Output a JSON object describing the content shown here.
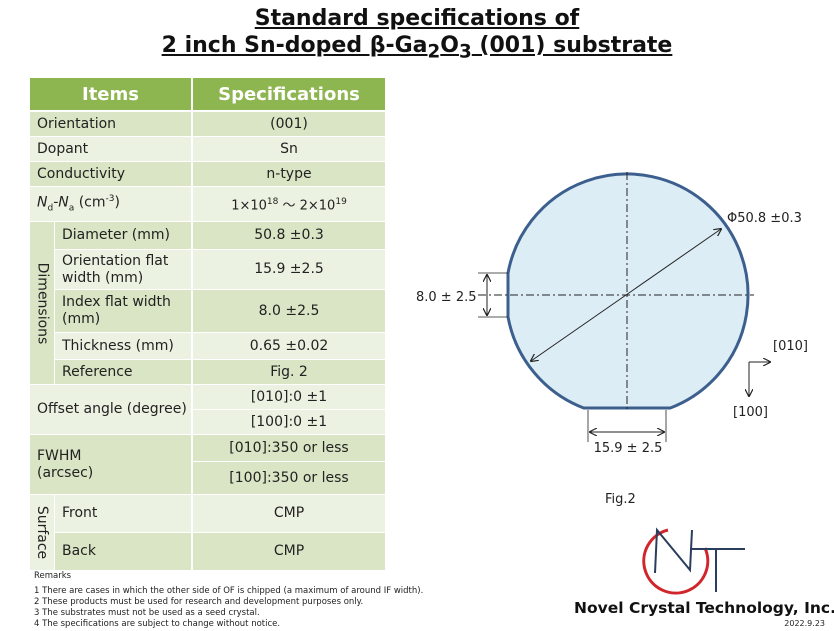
{
  "title": {
    "line1": "Standard specifications of",
    "line2": [
      "2 inch Sn-doped β-Ga",
      "2",
      "O",
      "3",
      " (001) substrate"
    ]
  },
  "table": {
    "header": [
      "Items",
      "Specifications"
    ],
    "orientation": [
      "Orientation",
      "(001)"
    ],
    "dopant": [
      "Dopant",
      "Sn"
    ],
    "conductivity": [
      "Conductivity",
      "n-type"
    ],
    "carrier": {
      "item": [
        "N",
        "d",
        "-N",
        "a",
        " (cm",
        "-3",
        ")"
      ],
      "spec": [
        "1×10",
        "18",
        " ～ 2×10",
        "19"
      ]
    },
    "dimensions": {
      "label": "Dimensions",
      "rows": [
        [
          "Diameter (mm)",
          "50.8 ±0.3"
        ],
        [
          "Orientation flat width (mm)",
          "15.9 ±2.5"
        ],
        [
          "Index flat width (mm)",
          "8.0 ±2.5"
        ],
        [
          "Thickness (mm)",
          "0.65 ±0.02"
        ],
        [
          "Reference",
          "Fig. 2"
        ]
      ]
    },
    "offset": {
      "item": "Offset angle (degree)",
      "specs": [
        "[010]:0 ±1",
        "[100]:0 ±1"
      ]
    },
    "fwhm": {
      "item": "FWHM (arcsec)",
      "specs": [
        "[010]:350 or less",
        "[100]:350 or less"
      ]
    },
    "surface": {
      "label": "Surface",
      "rows": [
        [
          "Front",
          "CMP"
        ],
        [
          "Back",
          "CMP"
        ]
      ]
    }
  },
  "remarks": {
    "title": "Remarks",
    "lines": [
      "1 There are cases in which the other side of OF is chipped (a maximum of around IF width).",
      "2 These products must be used for research and development purposes only.",
      "3 The substrates must not be used as a seed crystal.",
      "4 The specifications are subject to change without notice."
    ]
  },
  "figure": {
    "diameter": "Φ50.8 ±0.3",
    "index_flat": "8.0 ± 2.5",
    "orientation_flat": "15.9 ± 2.5",
    "axis_x": "[010]",
    "axis_y": "[100]",
    "caption": "Fig.2"
  },
  "footer": {
    "company": "Novel Crystal Technology, Inc.",
    "date": "2022.9.23"
  }
}
